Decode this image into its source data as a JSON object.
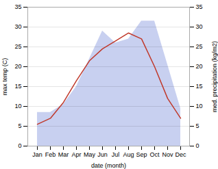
{
  "chart_data": {
    "type": "line",
    "categories": [
      "Jan",
      "Feb",
      "Mar",
      "Apr",
      "May",
      "Jun",
      "Jul",
      "Aug",
      "Sep",
      "Oct",
      "Nov",
      "Dec"
    ],
    "xlabel": "date (month)",
    "ylabel": "max temp (C)",
    "y2label": "med. precipitation (kg/m2)",
    "series": [
      {
        "type": "area",
        "axis": "y2",
        "color": "#c8d0f0",
        "values": [
          8.5,
          8.5,
          10.5,
          15.0,
          22.0,
          29.0,
          26.0,
          27.0,
          31.5,
          31.5,
          20.5,
          9.5
        ]
      },
      {
        "type": "line",
        "color": "#c0392b",
        "values": [
          5.5,
          7.0,
          11.0,
          16.5,
          21.5,
          24.5,
          26.5,
          28.5,
          27.0,
          20.0,
          12.0,
          7.0
        ]
      }
    ],
    "ylim": [
      0,
      35
    ],
    "yticks": [
      0,
      5,
      10,
      15,
      20,
      25,
      30,
      35
    ],
    "y2lim": [
      0,
      35
    ],
    "y2ticks": [
      0,
      5,
      10,
      15,
      20,
      25,
      30,
      35
    ],
    "grid": true
  }
}
